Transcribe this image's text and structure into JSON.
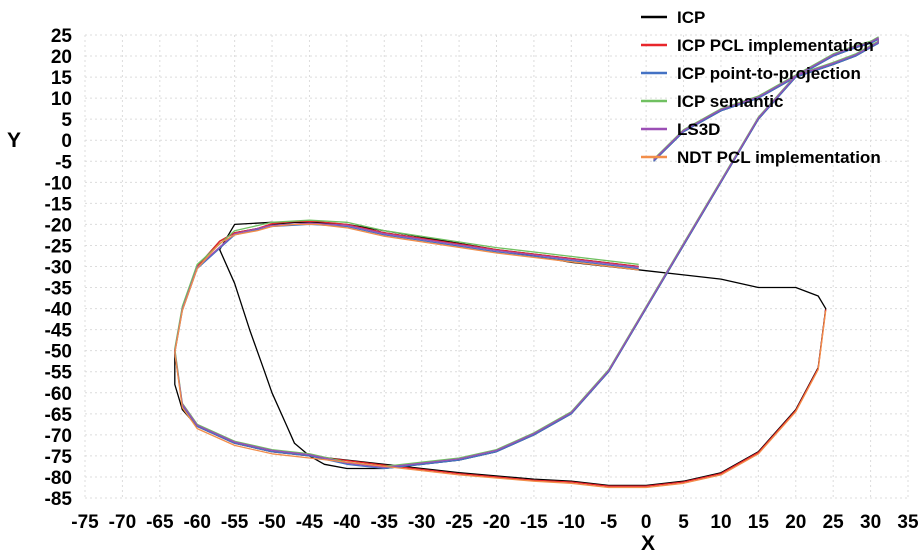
{
  "chart_data": {
    "type": "line",
    "title": "",
    "xlabel": "X",
    "ylabel": "Y",
    "xlim": [
      -75,
      35
    ],
    "ylim": [
      -85,
      25
    ],
    "x_ticks": [
      "-75",
      "-70",
      "-65",
      "-60",
      "-55",
      "-50",
      "-45",
      "-40",
      "-35",
      "-30",
      "-25",
      "-20",
      "-15",
      "-10",
      "-5",
      "0",
      "5",
      "10",
      "15",
      "20",
      "25",
      "30",
      "35"
    ],
    "y_ticks": [
      "25",
      "20",
      "15",
      "10",
      "5",
      "0",
      "-5",
      "-10",
      "-15",
      "-20",
      "-25",
      "-30",
      "-35",
      "-40",
      "-45",
      "-50",
      "-55",
      "-60",
      "-65",
      "-70",
      "-75",
      "-80",
      "-85"
    ],
    "grid": true,
    "legend_position": "top-right",
    "series": [
      {
        "name": "ICP",
        "color": "#000000",
        "x": [
          -1,
          -20,
          -35,
          -40,
          -44,
          -47,
          -50,
          -52,
          -55,
          -57,
          -60,
          -62,
          -63,
          -63,
          -62,
          -60,
          -55,
          -50,
          -45,
          -35,
          -25,
          -15,
          -10,
          -5,
          0,
          5,
          10,
          15,
          20,
          23,
          24,
          23,
          20,
          15,
          10,
          5,
          0,
          -10,
          -20,
          -30,
          -40,
          -45,
          -50,
          -55,
          -57,
          -55,
          -53,
          -51,
          -50,
          -48,
          -47,
          -45,
          -43,
          -40,
          -35,
          -30,
          -25,
          -20,
          -15,
          -10,
          -5,
          0,
          5,
          10,
          15,
          20,
          25,
          28,
          30,
          31,
          31,
          30,
          28,
          25,
          20,
          15,
          10,
          5,
          1
        ],
        "y": [
          -30,
          -26,
          -22,
          -20,
          -19.5,
          -19.5,
          -20,
          -21,
          -22,
          -24,
          -30,
          -40,
          -50,
          -58,
          -64,
          -68,
          -72,
          -74,
          -75,
          -77,
          -79,
          -80.5,
          -81,
          -82,
          -82,
          -81,
          -79,
          -74,
          -64,
          -54,
          -40,
          -37,
          -35,
          -35,
          -33,
          -32,
          -31,
          -29,
          -26,
          -23,
          -20,
          -19.5,
          -19.5,
          -20,
          -26,
          -34,
          -45,
          -55,
          -60,
          -68,
          -72,
          -75,
          -77,
          -78,
          -78,
          -77,
          -76,
          -74,
          -70,
          -65,
          -55,
          -40,
          -25,
          -10,
          5,
          15,
          20,
          22,
          23,
          24,
          23,
          22,
          20,
          18,
          15,
          10,
          7,
          2,
          -5
        ]
      },
      {
        "name": "ICP PCL implementation",
        "color": "#e8262b",
        "x": [
          -1,
          -20,
          -35,
          -40,
          -44,
          -47,
          -50,
          -52,
          -55,
          -57,
          -60,
          -62,
          -63,
          -62,
          -60,
          -55,
          -50,
          -45,
          -35,
          -25,
          -15,
          -10,
          -5,
          0,
          5,
          10,
          15,
          20,
          23,
          24
        ],
        "y": [
          -30,
          -26,
          -22,
          -20,
          -19.3,
          -19.3,
          -19.8,
          -21,
          -22,
          -24,
          -30,
          -40,
          -50,
          -63,
          -68,
          -72,
          -74,
          -75,
          -77.2,
          -79.2,
          -80.8,
          -81.2,
          -82.2,
          -82.2,
          -81.2,
          -79.2,
          -74.2,
          -64.2,
          -54.2,
          -40.2
        ]
      },
      {
        "name": "ICP point-to-projection",
        "color": "#4472c4",
        "x": [
          -1,
          -20,
          -35,
          -40,
          -45,
          -50,
          -55,
          -60,
          -62,
          -63,
          -62,
          -60,
          -55,
          -50,
          -45,
          -40,
          -35,
          -30,
          -25,
          -20,
          -15,
          -10,
          -5,
          0,
          5,
          10,
          15,
          20,
          25,
          28,
          30,
          31,
          31,
          30,
          28,
          25,
          20,
          15,
          10,
          5,
          1
        ],
        "y": [
          -30.5,
          -26.5,
          -22.5,
          -20.5,
          -20,
          -20.5,
          -22.5,
          -30.5,
          -40.5,
          -50.5,
          -63,
          -68,
          -72,
          -74,
          -75,
          -77,
          -78,
          -77,
          -76,
          -74,
          -70,
          -65,
          -55,
          -40,
          -25,
          -10,
          5,
          15,
          20,
          22,
          23,
          24,
          23,
          22,
          20,
          18,
          15,
          10,
          7,
          2,
          -5
        ]
      },
      {
        "name": "ICP semantic",
        "color": "#70c061",
        "x": [
          -1,
          -20,
          -35,
          -40,
          -45,
          -50,
          -55,
          -60,
          -62,
          -63,
          -62,
          -60,
          -55,
          -50,
          -45,
          -40,
          -35,
          -30,
          -25,
          -20,
          -15,
          -10,
          -5,
          0,
          5,
          10,
          15,
          20,
          25,
          28,
          30,
          31,
          31,
          30,
          28,
          25,
          20,
          15,
          10,
          5,
          1
        ],
        "y": [
          -29.5,
          -25.5,
          -21.5,
          -19.5,
          -19,
          -19.5,
          -21.5,
          -29.5,
          -39.5,
          -49.5,
          -62.5,
          -67.5,
          -71.5,
          -73.5,
          -74.5,
          -76.5,
          -77.5,
          -76.5,
          -75.5,
          -73.5,
          -69.5,
          -64.5,
          -54.5,
          -39.5,
          -24.5,
          -9.5,
          5.5,
          15.5,
          20.5,
          22.5,
          23.5,
          24.5,
          23.5,
          22.5,
          20.5,
          18.5,
          15.5,
          10.5,
          7.5,
          2.5,
          -4.5
        ]
      },
      {
        "name": "LS3D",
        "color": "#9b4fb5",
        "x": [
          -1,
          -20,
          -35,
          -40,
          -45,
          -50,
          -55,
          -60,
          -62,
          -63,
          -62,
          -60,
          -55,
          -50,
          -45,
          -40,
          -35,
          -30,
          -25,
          -20,
          -15,
          -10,
          -5,
          0,
          5,
          10,
          15,
          20,
          25,
          28,
          30,
          31,
          31,
          30,
          28,
          25,
          20,
          15,
          10,
          5,
          1
        ],
        "y": [
          -30.2,
          -26.2,
          -22.2,
          -20.2,
          -19.7,
          -20.2,
          -22.2,
          -30.2,
          -40.2,
          -50.2,
          -62.7,
          -67.7,
          -71.7,
          -73.7,
          -74.7,
          -76.7,
          -77.7,
          -76.7,
          -75.7,
          -73.7,
          -69.7,
          -64.7,
          -54.7,
          -39.7,
          -24.7,
          -9.7,
          5.3,
          15.3,
          20.3,
          22.3,
          23.3,
          24.3,
          23.3,
          22.3,
          20.3,
          18.3,
          15.3,
          10.3,
          7.3,
          2.3,
          -4.7
        ]
      },
      {
        "name": "NDT  PCL implementation",
        "color": "#f28e4a",
        "x": [
          -1,
          -20,
          -35,
          -40,
          -44,
          -47,
          -50,
          -52,
          -55,
          -57,
          -60,
          -62,
          -63,
          -62,
          -60,
          -55,
          -50,
          -45,
          -35,
          -25,
          -15,
          -10,
          -5,
          0,
          5,
          10,
          15,
          20,
          23,
          24
        ],
        "y": [
          -30.8,
          -26.8,
          -22.8,
          -20.8,
          -20,
          -20,
          -20.5,
          -21.5,
          -22.5,
          -24.5,
          -30.5,
          -40.5,
          -50.5,
          -63.5,
          -68.5,
          -72.5,
          -74.5,
          -75.5,
          -77.5,
          -79.5,
          -81,
          -81.5,
          -82.5,
          -82.5,
          -81.5,
          -79.5,
          -74.5,
          -64.5,
          -54.5,
          -40.5
        ]
      }
    ]
  }
}
